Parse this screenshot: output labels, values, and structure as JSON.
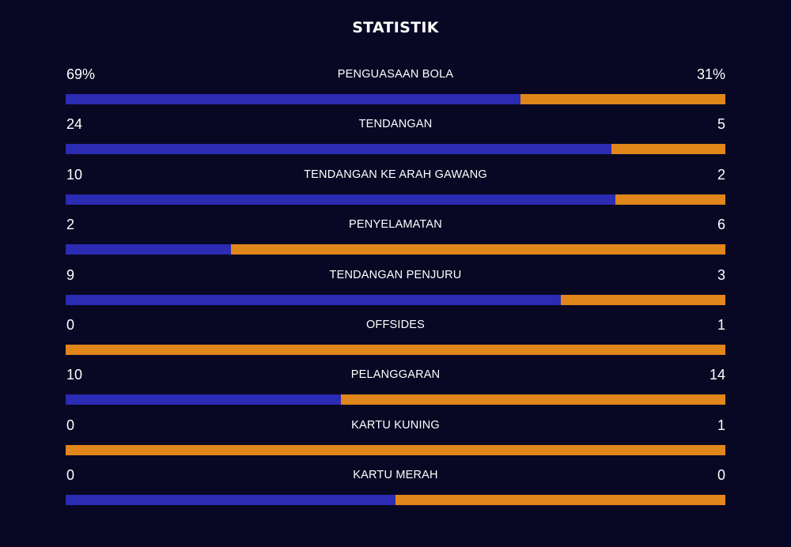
{
  "title": "STATISTIK",
  "colors": {
    "background": "#090824",
    "home": "#2b2bb4",
    "away": "#e0861a",
    "text": "#ffffff"
  },
  "stats": [
    {
      "label": "PENGUASAAN BOLA",
      "home": "69%",
      "away": "31%",
      "home_share": 0.69
    },
    {
      "label": "TENDANGAN",
      "home": "24",
      "away": "5",
      "home_share": 0.8276
    },
    {
      "label": "TENDANGAN KE ARAH GAWANG",
      "home": "10",
      "away": "2",
      "home_share": 0.8333
    },
    {
      "label": "PENYELAMATAN",
      "home": "2",
      "away": "6",
      "home_share": 0.25
    },
    {
      "label": "TENDANGAN PENJURU",
      "home": "9",
      "away": "3",
      "home_share": 0.75
    },
    {
      "label": "OFFSIDES",
      "home": "0",
      "away": "1",
      "home_share": 0.0
    },
    {
      "label": "PELANGGARAN",
      "home": "10",
      "away": "14",
      "home_share": 0.4167
    },
    {
      "label": "KARTU KUNING",
      "home": "0",
      "away": "1",
      "home_share": 0.0
    },
    {
      "label": "KARTU MERAH",
      "home": "0",
      "away": "0",
      "home_share": 0.5
    }
  ]
}
